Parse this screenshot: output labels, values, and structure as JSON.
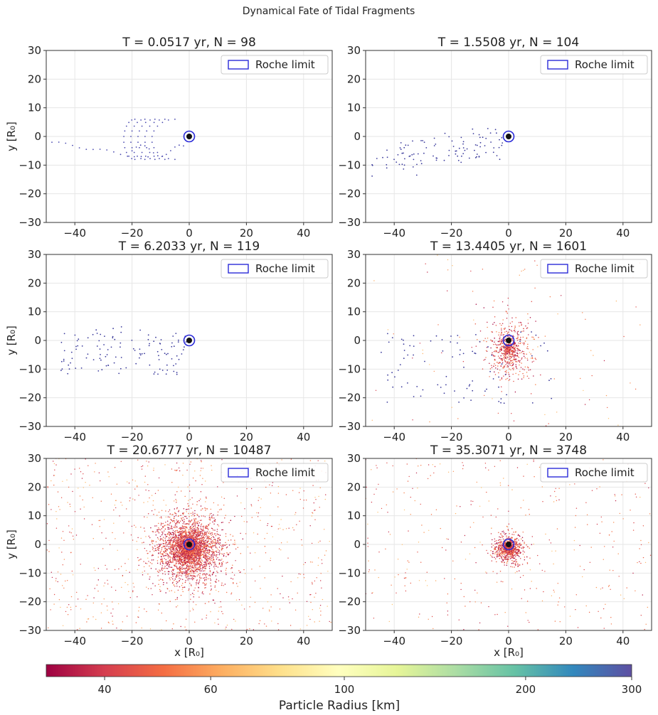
{
  "figure": {
    "suptitle": "Dynamical Fate of Tidal Fragments"
  },
  "colorbar": {
    "label": "Particle Radius [km]",
    "scale": "log",
    "range": [
      32,
      300
    ],
    "ticks": [
      40,
      60,
      100,
      200,
      300
    ],
    "tick_labels": [
      "40",
      "60",
      "100",
      "200",
      "300"
    ],
    "colormap_stops": [
      "#9e0142",
      "#d53e4f",
      "#f46d43",
      "#fdae61",
      "#fee08b",
      "#ffffbf",
      "#e6f598",
      "#abdda4",
      "#66c2a5",
      "#3288bd",
      "#5e4fa2"
    ]
  },
  "legend": {
    "label": "Roche limit",
    "edge_color": "#2a2ad8"
  },
  "axes_labels": {
    "x": "x  [R₀]",
    "y": "y  [R₀]"
  },
  "chart_data": [
    {
      "type": "scatter",
      "title": "T = 0.0517 yr, N = 98",
      "time_yr": 0.0517,
      "n_particles": 98,
      "xlabel": "",
      "ylabel": "y  [R₀]",
      "xlim": [
        -50,
        50
      ],
      "ylim": [
        -30,
        30
      ],
      "xticks": [
        -40,
        -20,
        0,
        20,
        40
      ],
      "yticks": [
        -30,
        -20,
        -10,
        0,
        10,
        20,
        30
      ],
      "grid": true,
      "legend": "top-right",
      "pattern": "stream",
      "dot_color": "#4b4bb0",
      "spread": 1.0
    },
    {
      "type": "scatter",
      "title": "T = 1.5508 yr, N = 104",
      "time_yr": 1.5508,
      "n_particles": 104,
      "xlabel": "",
      "ylabel": "",
      "xlim": [
        -50,
        50
      ],
      "ylim": [
        -30,
        30
      ],
      "xticks": [
        -40,
        -20,
        0,
        20,
        40
      ],
      "yticks": [
        -30,
        -20,
        -10,
        0,
        10,
        20,
        30
      ],
      "grid": true,
      "legend": "top-right",
      "pattern": "tail",
      "dot_color": "#3b3b9c",
      "spread": 1.0
    },
    {
      "type": "scatter",
      "title": "T = 6.2033 yr, N = 119",
      "time_yr": 6.2033,
      "n_particles": 119,
      "xlabel": "",
      "ylabel": "y  [R₀]",
      "xlim": [
        -50,
        50
      ],
      "ylim": [
        -30,
        30
      ],
      "xticks": [
        -40,
        -20,
        0,
        20,
        40
      ],
      "yticks": [
        -30,
        -20,
        -10,
        0,
        10,
        20,
        30
      ],
      "grid": true,
      "legend": "top-right",
      "pattern": "scattered",
      "dot_color": "#3b3b9c",
      "spread": 1.0
    },
    {
      "type": "scatter",
      "title": "T = 13.4405 yr, N = 1601",
      "time_yr": 13.4405,
      "n_particles": 1601,
      "xlabel": "",
      "ylabel": "",
      "xlim": [
        -50,
        50
      ],
      "ylim": [
        -30,
        30
      ],
      "xticks": [
        -40,
        -20,
        0,
        20,
        40
      ],
      "yticks": [
        -30,
        -20,
        -10,
        0,
        10,
        20,
        30
      ],
      "grid": true,
      "legend": "top-right",
      "pattern": "cloud",
      "dot_color": "#3b3b9c",
      "spread": 6.0
    },
    {
      "type": "scatter",
      "title": "T = 20.6777 yr, N = 10487",
      "time_yr": 20.6777,
      "n_particles": 10487,
      "xlabel": "x  [R₀]",
      "ylabel": "y  [R₀]",
      "xlim": [
        -50,
        50
      ],
      "ylim": [
        -30,
        30
      ],
      "xticks": [
        -40,
        -20,
        0,
        20,
        40
      ],
      "yticks": [
        -30,
        -20,
        -10,
        0,
        10,
        20,
        30
      ],
      "grid": true,
      "legend": "top-right",
      "pattern": "dense",
      "dot_color": "#b8203f",
      "spread": 7.0
    },
    {
      "type": "scatter",
      "title": "T = 35.3071 yr, N = 3748",
      "time_yr": 35.3071,
      "n_particles": 3748,
      "xlabel": "x  [R₀]",
      "ylabel": "",
      "xlim": [
        -50,
        50
      ],
      "ylim": [
        -30,
        30
      ],
      "xticks": [
        -40,
        -20,
        0,
        20,
        40
      ],
      "yticks": [
        -30,
        -20,
        -10,
        0,
        10,
        20,
        30
      ],
      "grid": true,
      "legend": "top-right",
      "pattern": "sparse",
      "dot_color": "#c03050",
      "spread": 3.0
    }
  ]
}
